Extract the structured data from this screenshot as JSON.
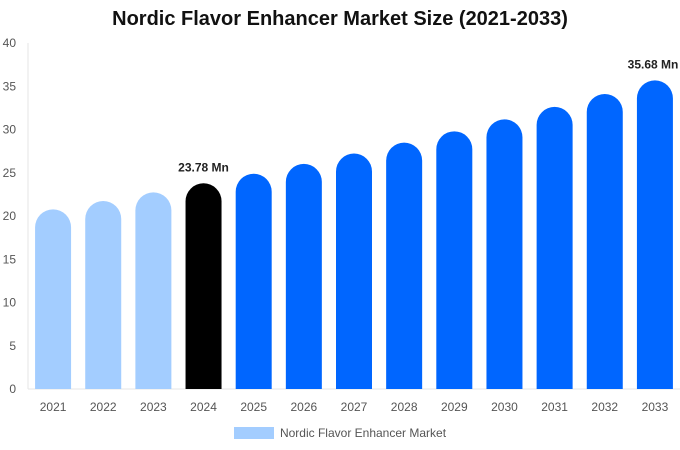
{
  "chart_data": {
    "type": "bar",
    "title": "Nordic Flavor Enhancer Market Size (2021-2033)",
    "xlabel": "",
    "ylabel": "",
    "ylim": [
      0,
      40
    ],
    "yticks": [
      0,
      5,
      10,
      15,
      20,
      25,
      30,
      35,
      40
    ],
    "grid": false,
    "legend_position": "bottom",
    "categories": [
      "2021",
      "2022",
      "2023",
      "2024",
      "2025",
      "2026",
      "2027",
      "2028",
      "2029",
      "2030",
      "2031",
      "2032",
      "2033"
    ],
    "series": [
      {
        "name": "Nordic Flavor Enhancer Market",
        "values": [
          20.77,
          21.73,
          22.73,
          23.78,
          24.88,
          26.02,
          27.22,
          28.48,
          29.79,
          31.17,
          32.61,
          34.11,
          35.68
        ]
      }
    ],
    "bar_colors": [
      "#a3cdff",
      "#a3cdff",
      "#a3cdff",
      "#000000",
      "#0066ff",
      "#0066ff",
      "#0066ff",
      "#0066ff",
      "#0066ff",
      "#0066ff",
      "#0066ff",
      "#0066ff",
      "#0066ff"
    ],
    "data_labels": [
      {
        "category": "2024",
        "text": "23.78 Mn"
      },
      {
        "category": "2033",
        "text": "35.68 Mn"
      }
    ],
    "legend_color": "#a3cdff"
  }
}
